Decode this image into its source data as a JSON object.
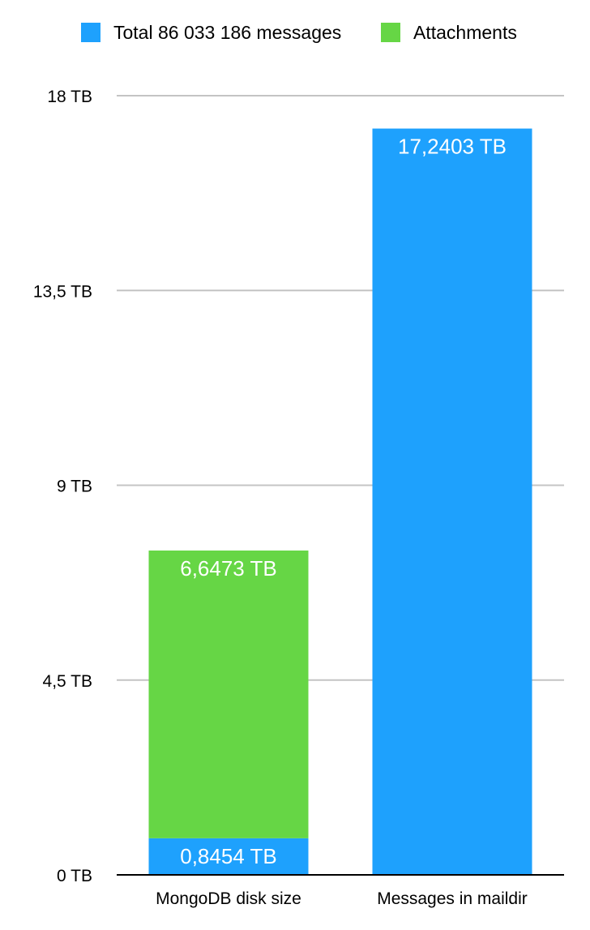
{
  "chart_data": {
    "type": "bar",
    "stacked": true,
    "categories": [
      "MongoDB disk size",
      "Messages in maildir"
    ],
    "series": [
      {
        "name": "Total 86 033 186 messages",
        "color": "#1ea1fd",
        "values": [
          0.8454,
          17.2403
        ],
        "labels": [
          "0,8454 TB",
          "17,2403 TB"
        ]
      },
      {
        "name": "Attachments",
        "color": "#66d645",
        "values": [
          6.6473,
          0
        ],
        "labels": [
          "6,6473 TB",
          ""
        ]
      }
    ],
    "yticks": [
      {
        "value": 0,
        "label": "0 TB"
      },
      {
        "value": 4.5,
        "label": "4,5 TB"
      },
      {
        "value": 9,
        "label": "9 TB"
      },
      {
        "value": 13.5,
        "label": "13,5 TB"
      },
      {
        "value": 18,
        "label": "18 TB"
      }
    ],
    "ylim": [
      0,
      18
    ],
    "grid": true,
    "legend_position": "top"
  }
}
